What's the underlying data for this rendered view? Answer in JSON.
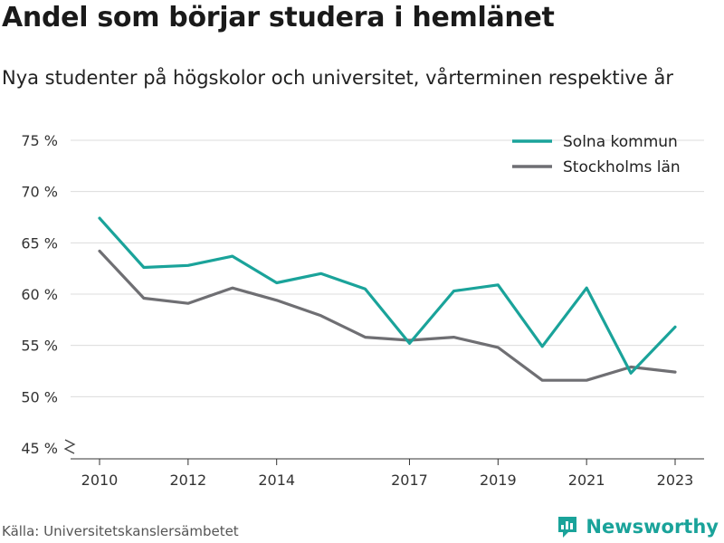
{
  "title": "Andel som börjar studera i hemlänet",
  "subtitle": "Nya studenter på högskolor och universitet, vårterminen respektive år",
  "source": "Källa: Universitetskanslersämbetet",
  "brand": "Newsworthy",
  "colors": {
    "solna": "#1aa39a",
    "stockholm": "#6f6f73",
    "grid": "#dcdcdc",
    "axis": "#555555"
  },
  "chart_data": {
    "type": "line",
    "x": [
      2010,
      2011,
      2012,
      2013,
      2014,
      2015,
      2016,
      2017,
      2018,
      2019,
      2020,
      2021,
      2022,
      2023
    ],
    "series": [
      {
        "name": "Solna kommun",
        "values": [
          67.4,
          62.6,
          62.8,
          63.7,
          61.1,
          62.0,
          60.5,
          55.2,
          60.3,
          60.9,
          54.9,
          60.6,
          52.3,
          56.8
        ]
      },
      {
        "name": "Stockholms län",
        "values": [
          64.2,
          59.6,
          59.1,
          60.6,
          59.4,
          57.9,
          55.8,
          55.5,
          55.8,
          54.8,
          51.6,
          51.6,
          52.9,
          52.4
        ]
      }
    ],
    "yticks": [
      45,
      50,
      55,
      60,
      65,
      70,
      75
    ],
    "ytick_labels": [
      "45 %",
      "50 %",
      "55 %",
      "60 %",
      "65 %",
      "70 %",
      "75 %"
    ],
    "xticks": [
      2010,
      2012,
      2014,
      2017,
      2019,
      2021,
      2023
    ],
    "ylim": [
      45,
      75
    ],
    "xlim": [
      2010,
      2023
    ],
    "y_axis_break": true,
    "grid": true,
    "legend": "top-right"
  }
}
